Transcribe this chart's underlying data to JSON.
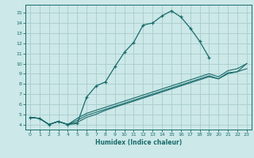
{
  "xlabel": "Humidex (Indice chaleur)",
  "ylabel": "",
  "bg_color": "#cce8e8",
  "grid_color": "#aacccc",
  "line_color": "#1a6b6b",
  "xlim": [
    -0.5,
    23.5
  ],
  "ylim": [
    3.5,
    15.8
  ],
  "xticks": [
    0,
    1,
    2,
    3,
    4,
    5,
    6,
    7,
    8,
    9,
    10,
    11,
    12,
    13,
    14,
    15,
    16,
    17,
    18,
    19,
    20,
    21,
    22,
    23
  ],
  "yticks": [
    4,
    5,
    6,
    7,
    8,
    9,
    10,
    11,
    12,
    13,
    14,
    15
  ],
  "line1_x": [
    0,
    1,
    2,
    3,
    4,
    5,
    6,
    7,
    8,
    9,
    10,
    11,
    12,
    13,
    14,
    15,
    16,
    17,
    18,
    19
  ],
  "line1_y": [
    4.7,
    4.6,
    4.0,
    4.3,
    4.0,
    4.1,
    6.7,
    7.8,
    8.2,
    9.7,
    11.1,
    12.1,
    13.8,
    14.0,
    14.7,
    15.2,
    14.6,
    13.5,
    12.2,
    10.6
  ],
  "line2_x": [
    0,
    1,
    2,
    3,
    4,
    5,
    6,
    7,
    8,
    9,
    10,
    11,
    12,
    13,
    14,
    15,
    16,
    17,
    18,
    19,
    20,
    21,
    22,
    23
  ],
  "line2_y": [
    4.7,
    4.6,
    4.0,
    4.3,
    4.0,
    4.2,
    4.7,
    5.0,
    5.4,
    5.7,
    6.0,
    6.3,
    6.6,
    6.9,
    7.2,
    7.5,
    7.8,
    8.1,
    8.4,
    8.7,
    8.5,
    9.1,
    9.2,
    10.0
  ],
  "line3_x": [
    0,
    1,
    2,
    3,
    4,
    5,
    6,
    7,
    8,
    9,
    10,
    11,
    12,
    13,
    14,
    15,
    16,
    17,
    18,
    19,
    20,
    21,
    22,
    23
  ],
  "line3_y": [
    4.7,
    4.6,
    4.0,
    4.3,
    4.0,
    4.4,
    4.9,
    5.2,
    5.5,
    5.8,
    6.1,
    6.4,
    6.7,
    7.0,
    7.3,
    7.6,
    7.9,
    8.2,
    8.5,
    8.8,
    8.5,
    9.0,
    9.2,
    9.5
  ],
  "line4_x": [
    0,
    1,
    2,
    3,
    4,
    5,
    6,
    7,
    8,
    9,
    10,
    11,
    12,
    13,
    14,
    15,
    16,
    17,
    18,
    19,
    20,
    21,
    22,
    23
  ],
  "line4_y": [
    4.7,
    4.6,
    4.0,
    4.3,
    4.0,
    4.6,
    5.1,
    5.4,
    5.7,
    6.0,
    6.3,
    6.6,
    6.9,
    7.2,
    7.5,
    7.8,
    8.1,
    8.4,
    8.7,
    9.0,
    8.7,
    9.3,
    9.5,
    10.0
  ]
}
